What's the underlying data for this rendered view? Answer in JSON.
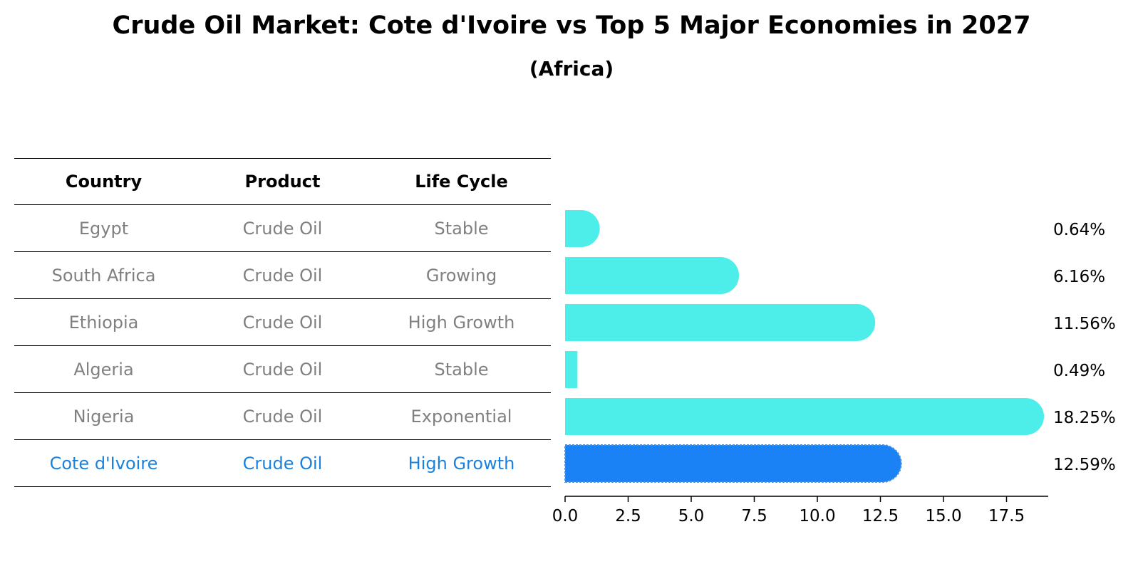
{
  "title": "Crude Oil Market: Cote d'Ivoire vs Top 5 Major Economies in 2027",
  "subtitle": "(Africa)",
  "table": {
    "headers": [
      "Country",
      "Product",
      "Life Cycle"
    ],
    "rows": [
      {
        "country": "Egypt",
        "product": "Crude Oil",
        "life_cycle": "Stable"
      },
      {
        "country": "South Africa",
        "product": "Crude Oil",
        "life_cycle": "Growing"
      },
      {
        "country": "Ethiopia",
        "product": "Crude Oil",
        "life_cycle": "High Growth"
      },
      {
        "country": "Algeria",
        "product": "Crude Oil",
        "life_cycle": "Stable"
      },
      {
        "country": "Nigeria",
        "product": "Crude Oil",
        "life_cycle": "Exponential"
      },
      {
        "country": "Cote d'Ivoire",
        "product": "Crude Oil",
        "life_cycle": "High Growth"
      }
    ]
  },
  "chart_data": {
    "type": "bar",
    "orientation": "horizontal",
    "categories": [
      "Egypt",
      "South Africa",
      "Ethiopia",
      "Algeria",
      "Nigeria",
      "Cote d'Ivoire"
    ],
    "values": [
      0.64,
      6.16,
      11.56,
      0.49,
      18.25,
      12.59
    ],
    "value_labels": [
      "0.64%",
      "6.16%",
      "11.56%",
      "0.49%",
      "18.25%",
      "12.59%"
    ],
    "highlight": "Cote d'Ivoire",
    "xlim": [
      0,
      19.2
    ],
    "xticks": [
      0.0,
      2.5,
      5.0,
      7.5,
      10.0,
      12.5,
      15.0,
      17.5
    ],
    "xtick_labels": [
      "0.0",
      "2.5",
      "5.0",
      "7.5",
      "10.0",
      "12.5",
      "15.0",
      "17.5"
    ],
    "colors": {
      "bar": "#4deeea",
      "highlight": "#1a82f5",
      "highlight_border": "#4a8fe0"
    }
  }
}
